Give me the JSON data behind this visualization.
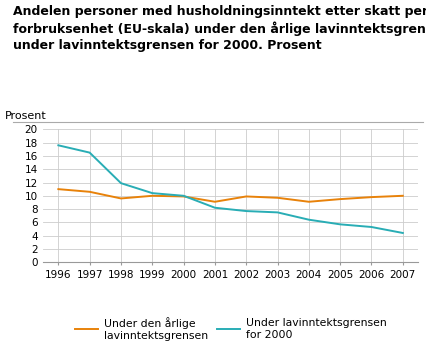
{
  "title_line1": "Andelen personer med husholdningsinntekt etter skatt per",
  "title_line2": "forbruksenhet (EU-skala) under den årlige lavinntektsgrensen og",
  "title_line3": "under lavinntektsgrensen for 2000. Prosent",
  "ylabel": "Prosent",
  "years": [
    1996,
    1997,
    1998,
    1999,
    2000,
    2001,
    2002,
    2003,
    2004,
    2005,
    2006,
    2007
  ],
  "annual_line": [
    11.0,
    10.6,
    9.6,
    10.0,
    9.9,
    9.1,
    9.9,
    9.7,
    9.1,
    9.5,
    9.8,
    10.0
  ],
  "y2000_line": [
    17.6,
    16.5,
    11.9,
    10.4,
    10.0,
    8.2,
    7.7,
    7.5,
    6.4,
    5.7,
    5.3,
    4.4
  ],
  "annual_color": "#e8820a",
  "y2000_color": "#29adb5",
  "legend1": "Under den årlige\nlavinntektsgrensen",
  "legend2": "Under lavinntektsgrensen\nfor 2000",
  "ylim": [
    0,
    20
  ],
  "yticks": [
    0,
    2,
    4,
    6,
    8,
    10,
    12,
    14,
    16,
    18,
    20
  ],
  "background_color": "#ffffff",
  "grid_color": "#cccccc",
  "title_fontsize": 9.0,
  "label_fontsize": 8.0,
  "tick_fontsize": 7.5,
  "legend_fontsize": 7.8
}
